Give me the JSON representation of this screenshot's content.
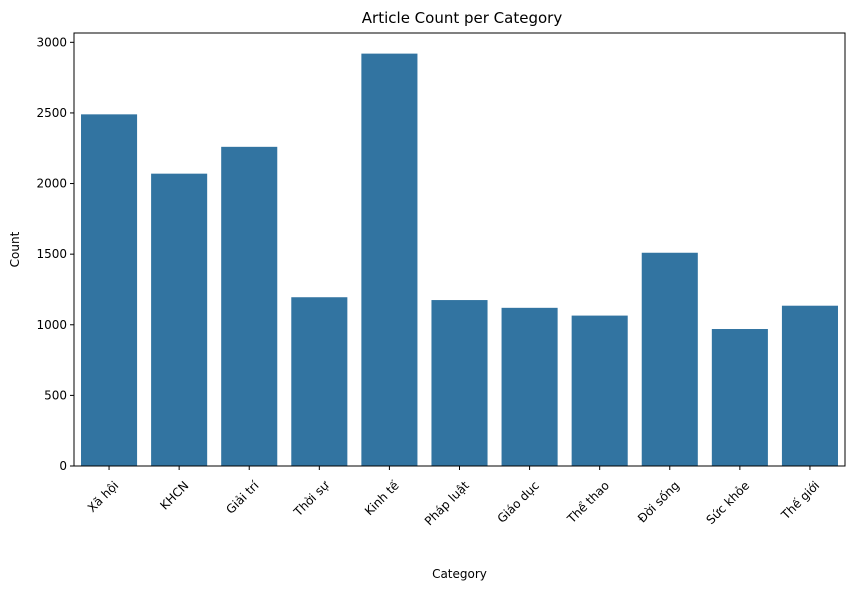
{
  "chart_data": {
    "type": "bar",
    "title": "Article Count per Category",
    "xlabel": "Category",
    "ylabel": "Count",
    "categories": [
      "Xã hội",
      "KHCN",
      "Giải trí",
      "Thời sự",
      "Kinh tế",
      "Pháp luật",
      "Giáo dục",
      "Thể thao",
      "Đời sống",
      "Sức khỏe",
      "Thế giới"
    ],
    "values": [
      2490,
      2070,
      2260,
      1195,
      2920,
      1175,
      1120,
      1065,
      1510,
      970,
      1135
    ],
    "yticks": [
      0,
      500,
      1000,
      1500,
      2000,
      2500,
      3000
    ],
    "ylim": [
      0,
      3066
    ],
    "bar_color": "#3274a1",
    "grid": false,
    "xtick_rotation": 45
  }
}
